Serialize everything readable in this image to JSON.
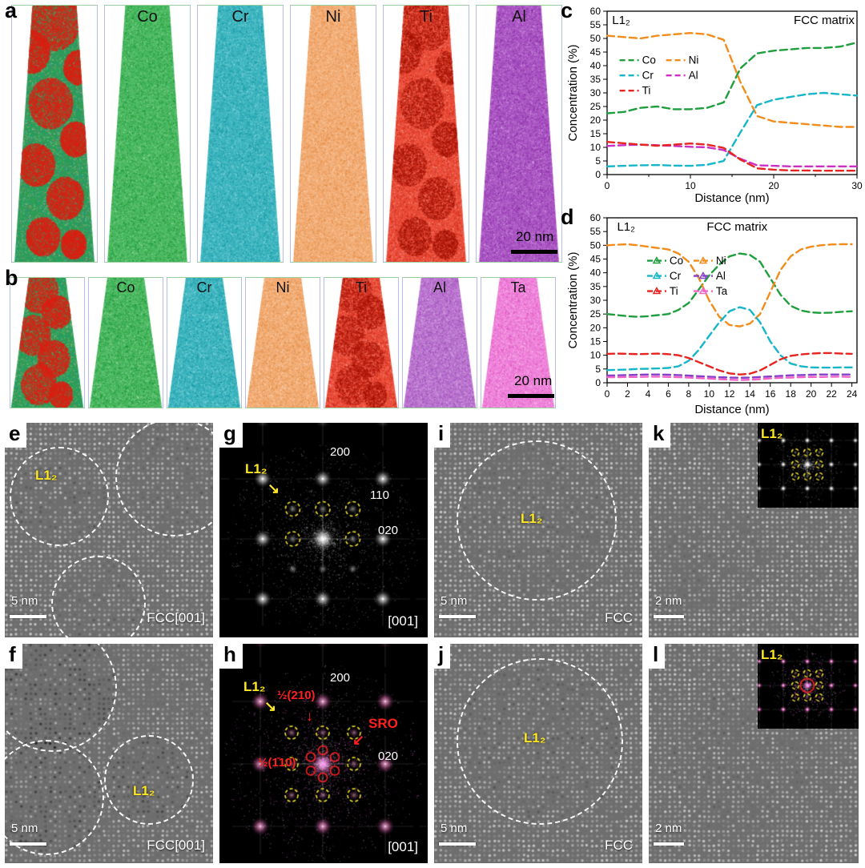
{
  "icons": {
    "arrow_se": "↘",
    "arrow_s": "↓",
    "arrow_sw": "↙"
  },
  "panel_a": {
    "label": "a",
    "scale_bar": "20 nm",
    "tips": [
      {
        "name": ""
      },
      {
        "name": "Co"
      },
      {
        "name": "Cr"
      },
      {
        "name": "Ni"
      },
      {
        "name": "Ti"
      },
      {
        "name": "Al"
      }
    ]
  },
  "panel_b": {
    "label": "b",
    "scale_bar": "20 nm",
    "tips": [
      {
        "name": ""
      },
      {
        "name": "Co"
      },
      {
        "name": "Cr"
      },
      {
        "name": "Ni"
      },
      {
        "name": "Ti"
      },
      {
        "name": "Al"
      },
      {
        "name": "Ta"
      }
    ]
  },
  "panel_c": {
    "label": "c"
  },
  "panel_d": {
    "label": "d"
  },
  "panel_e": {
    "label": "e",
    "phase": "L1₂",
    "scale_bar": "5 nm",
    "zone": "FCC[001]"
  },
  "panel_f": {
    "label": "f",
    "phase": "L1₂",
    "scale_bar": "5 nm",
    "zone": "FCC[001]"
  },
  "panel_g": {
    "label": "g",
    "phase": "L1₂",
    "refl_200": "200",
    "refl_110": "110",
    "refl_020": "020",
    "zone": "[001]"
  },
  "panel_h": {
    "label": "h",
    "phase": "L1₂",
    "refl_200": "200",
    "refl_020": "020",
    "zone": "[001]",
    "sro": "SRO",
    "half_210": "½(210)",
    "half_110": "½(1̄10)"
  },
  "panel_i": {
    "label": "i",
    "phase": "L1₂",
    "scale_bar": "5 nm",
    "zone": "FCC"
  },
  "panel_j": {
    "label": "j",
    "phase": "L1₂",
    "scale_bar": "5 nm",
    "zone": "FCC"
  },
  "panel_k": {
    "label": "k",
    "phase": "L1₂",
    "scale_bar": "2 nm"
  },
  "panel_l": {
    "label": "l",
    "phase": "L1₂",
    "scale_bar": "2 nm"
  },
  "chart_data": [
    {
      "id": "c",
      "type": "line",
      "xlabel": "Distance (nm)",
      "ylabel": "Concentration (%)",
      "xlim": [
        0,
        30
      ],
      "ylim": [
        0,
        60
      ],
      "x_ticks": [
        0,
        10,
        20,
        30
      ],
      "x_minor_step": 5,
      "y_tick_step": 5,
      "annotations": [
        {
          "text": "L1₂",
          "xf": 0.02,
          "anchor": "start"
        },
        {
          "text": "FCC matrix",
          "xf": 0.99,
          "anchor": "end"
        }
      ],
      "legend_rows": [
        [
          "Co",
          "Ni"
        ],
        [
          "Cr",
          "Al"
        ],
        [
          "Ti",
          ""
        ]
      ],
      "legend_pos": [
        0.05,
        0.3
      ],
      "x": [
        0,
        2,
        4,
        6,
        8,
        10,
        12,
        14,
        16,
        18,
        20,
        22,
        24,
        26,
        28,
        30
      ],
      "series": [
        {
          "name": "Co",
          "color": "#1f9e3d",
          "values": [
            22.5,
            23,
            24.5,
            25,
            24,
            24,
            24.5,
            26.5,
            39,
            44.5,
            45.5,
            46,
            46.5,
            46.5,
            47,
            48.5
          ]
        },
        {
          "name": "Ni",
          "color": "#f28c1b",
          "values": [
            51,
            50.5,
            50,
            51,
            51.5,
            52,
            51.5,
            49.5,
            34,
            21.5,
            19.5,
            19,
            18.5,
            18,
            17.5,
            17.5
          ]
        },
        {
          "name": "Cr",
          "color": "#15b6c9",
          "values": [
            3,
            3.2,
            3.4,
            3.5,
            3.3,
            3.2,
            3.6,
            5,
            15.5,
            25.5,
            27.5,
            28.5,
            29.5,
            30,
            29.5,
            29
          ]
        },
        {
          "name": "Al",
          "color": "#cb2fc6",
          "values": [
            10.5,
            10.8,
            11,
            10.8,
            10.5,
            10.2,
            10,
            9,
            5.8,
            3.4,
            3.2,
            3,
            3,
            3,
            3,
            3
          ]
        },
        {
          "name": "Ti",
          "color": "#e62420",
          "values": [
            12,
            11.5,
            11,
            10.6,
            11,
            11.4,
            11,
            9.8,
            5.5,
            2.3,
            1.8,
            1.5,
            1.5,
            1.4,
            1.4,
            1.4
          ]
        }
      ]
    },
    {
      "id": "d",
      "type": "line",
      "xlabel": "Distance (nm)",
      "ylabel": "Concentration (%)",
      "xlim": [
        0,
        24.5
      ],
      "ylim": [
        0,
        60
      ],
      "x_ticks": [
        0,
        2,
        4,
        6,
        8,
        10,
        12,
        14,
        16,
        18,
        20,
        22,
        24
      ],
      "y_tick_step": 5,
      "annotations": [
        {
          "text": "L1₂",
          "xf": 0.04,
          "anchor": "start"
        },
        {
          "text": "FCC matrix",
          "xf": 0.52,
          "anchor": "middle"
        }
      ],
      "legend_rows": [
        [
          "Co",
          "Ni"
        ],
        [
          "Cr",
          "Al"
        ],
        [
          "Ti",
          "Ta"
        ]
      ],
      "legend_pos": [
        0.16,
        0.26
      ],
      "legend_marker": "triangle",
      "x": [
        0,
        1,
        2,
        3,
        4,
        5,
        6,
        7,
        8,
        9,
        10,
        11,
        12,
        13,
        14,
        15,
        16,
        17,
        18,
        19,
        20,
        21,
        22,
        23,
        24
      ],
      "series": [
        {
          "name": "Co",
          "color": "#1f9e3d",
          "values": [
            25,
            24.6,
            24.2,
            24,
            24.2,
            24.6,
            25,
            26.5,
            29,
            34,
            39,
            43,
            46,
            47,
            46.5,
            44,
            38,
            32,
            28,
            26.3,
            25.6,
            25.4,
            25.5,
            25.8,
            26
          ]
        },
        {
          "name": "Ni",
          "color": "#f28c1b",
          "values": [
            50,
            50.2,
            50.4,
            50,
            49.5,
            49,
            48.5,
            47,
            44,
            38,
            30,
            24,
            21,
            20.5,
            21.5,
            25,
            33,
            41,
            46,
            48.5,
            49.5,
            50,
            50.3,
            50.4,
            50.4
          ]
        },
        {
          "name": "Cr",
          "color": "#15b6c9",
          "values": [
            4.6,
            4.7,
            4.8,
            5,
            5.1,
            5.2,
            5.4,
            6,
            8,
            12,
            17,
            22,
            26,
            27.5,
            26.5,
            22,
            15,
            10,
            7,
            6,
            5.6,
            5.5,
            5.5,
            5.6,
            5.6
          ]
        },
        {
          "name": "Al",
          "color": "#8440c8",
          "values": [
            2.6,
            2.7,
            2.8,
            2.9,
            3,
            3,
            2.9,
            2.8,
            2.6,
            2.4,
            2.2,
            2,
            1.9,
            1.8,
            1.9,
            2.1,
            2.3,
            2.5,
            2.7,
            2.8,
            2.9,
            3,
            3,
            3,
            3
          ]
        },
        {
          "name": "Ti",
          "color": "#e62420",
          "values": [
            10.5,
            10.6,
            10.5,
            10.4,
            10.5,
            10.6,
            10.4,
            10,
            9,
            7.5,
            6,
            4.5,
            3.4,
            3,
            3.3,
            4.5,
            6.5,
            8.5,
            9.8,
            10.3,
            10.6,
            10.8,
            10.8,
            10.6,
            10.5
          ]
        },
        {
          "name": "Ta",
          "color": "#f263c8",
          "values": [
            2,
            2,
            2.1,
            2.1,
            2.2,
            2.2,
            2.1,
            2,
            1.9,
            1.7,
            1.5,
            1.3,
            1.1,
            1,
            1.1,
            1.3,
            1.6,
            1.8,
            1.9,
            2,
            2.1,
            2.1,
            2.2,
            2.2,
            2.1
          ]
        }
      ]
    }
  ]
}
